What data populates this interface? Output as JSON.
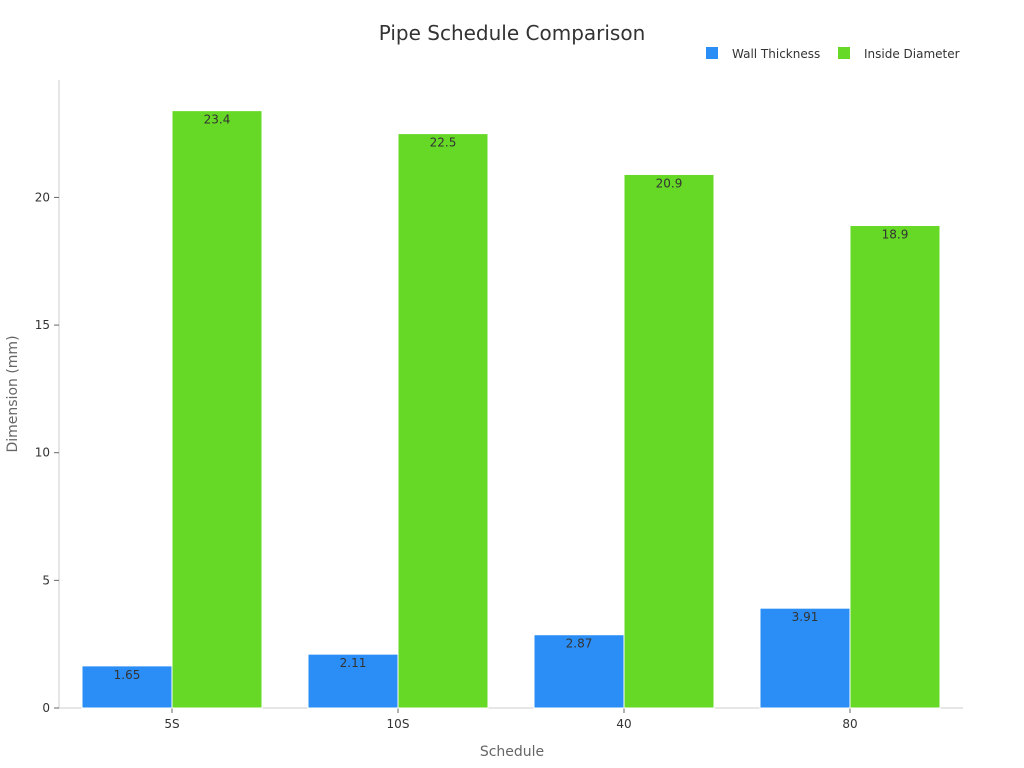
{
  "chart_data": {
    "type": "bar",
    "title": "Pipe Schedule Comparison",
    "xlabel": "Schedule",
    "ylabel": "Dimension (mm)",
    "categories": [
      "5S",
      "10S",
      "40",
      "80"
    ],
    "series": [
      {
        "name": "Wall Thickness",
        "color": "#2b8ef6",
        "values": [
          1.65,
          2.11,
          2.87,
          3.91
        ]
      },
      {
        "name": "Inside Diameter",
        "color": "#66d926",
        "values": [
          23.4,
          22.5,
          20.9,
          18.9
        ]
      }
    ],
    "ylim": [
      0,
      24.6
    ],
    "yticks": [
      0,
      5,
      10,
      15,
      20
    ],
    "grid": false,
    "legend": "top-right"
  }
}
